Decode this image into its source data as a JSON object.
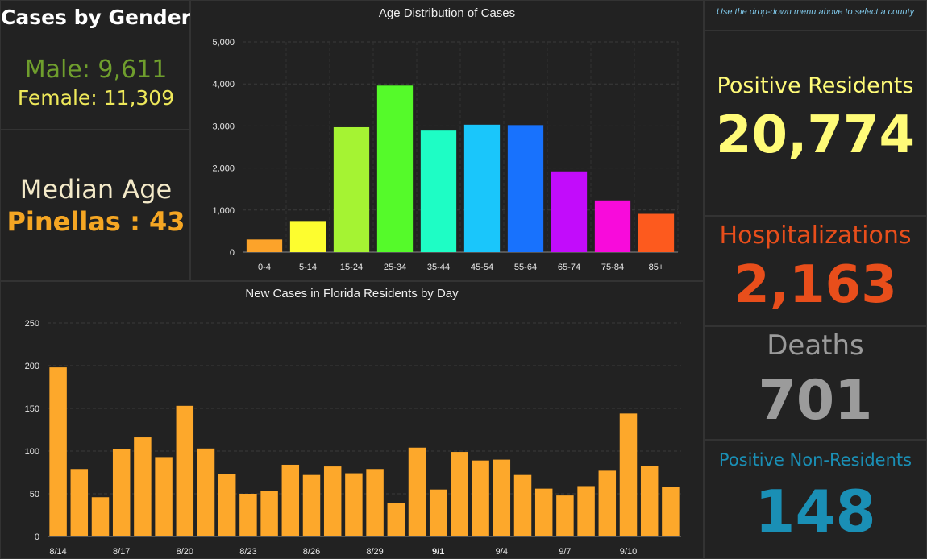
{
  "gender": {
    "title": "Cases by Gender",
    "male": "Male: 9,611",
    "female": "Female: 11,309"
  },
  "median": {
    "title": "Median Age",
    "value": "Pinellas : 43"
  },
  "note": "Use the drop-down menu above to select a county",
  "stats": {
    "residents": {
      "label": "Positive Residents",
      "value": "20,774",
      "color": "#fffb78"
    },
    "hospitalizations": {
      "label": "Hospitalizations",
      "value": "2,163",
      "color": "#e84e1b"
    },
    "deaths": {
      "label": "Deaths",
      "value": "701",
      "color": "#9b9b9b"
    },
    "non_residents": {
      "label": "Positive Non-Residents",
      "value": "148",
      "color": "#1a8fb5"
    }
  },
  "colors": {
    "gender_title": "#ffffff",
    "male": "#6f9e2d",
    "female": "#eee85a",
    "median_title": "#f3e9c8",
    "median_value": "#f5a623",
    "note": "#7fc7e8",
    "daily_bar": "#fda82b"
  },
  "chart_data": [
    {
      "type": "bar",
      "title": "Age Distribution of Cases",
      "categories": [
        "0-4",
        "5-14",
        "15-24",
        "25-34",
        "35-44",
        "45-54",
        "55-64",
        "65-74",
        "75-84",
        "85+"
      ],
      "values": [
        300,
        740,
        2970,
        3960,
        2890,
        3030,
        3020,
        1920,
        1230,
        910
      ],
      "colors": [
        "#fca32a",
        "#fdfd2f",
        "#a5f333",
        "#55fa2a",
        "#1efdc5",
        "#1ac6fb",
        "#1872fd",
        "#c20cfb",
        "#f80bdb",
        "#fd5a1e"
      ],
      "ylim": [
        0,
        5000
      ],
      "yticks": [
        "0",
        "1,000",
        "2,000",
        "3,000",
        "4,000",
        "5,000"
      ],
      "grid": true
    },
    {
      "type": "bar",
      "title": "New Cases in Florida Residents by Day",
      "categories": [
        "8/14",
        "8/15",
        "8/16",
        "8/17",
        "8/18",
        "8/19",
        "8/20",
        "8/21",
        "8/22",
        "8/23",
        "8/24",
        "8/25",
        "8/26",
        "8/27",
        "8/28",
        "8/29",
        "8/30",
        "8/31",
        "9/1",
        "9/2",
        "9/3",
        "9/4",
        "9/5",
        "9/6",
        "9/7",
        "9/8",
        "9/9",
        "9/10",
        "9/11",
        "9/12"
      ],
      "values": [
        198,
        79,
        46,
        102,
        116,
        93,
        153,
        103,
        73,
        50,
        53,
        84,
        72,
        82,
        74,
        79,
        39,
        104,
        55,
        99,
        89,
        90,
        72,
        56,
        48,
        59,
        77,
        144,
        83,
        58
      ],
      "xtick_labels": [
        "8/14",
        "8/17",
        "8/20",
        "8/23",
        "8/26",
        "8/29",
        "9/1",
        "9/4",
        "9/7",
        "9/10"
      ],
      "bold_tick": "9/1",
      "ylim": [
        0,
        250
      ],
      "yticks": [
        "0",
        "50",
        "100",
        "150",
        "200",
        "250"
      ],
      "grid": true
    }
  ]
}
